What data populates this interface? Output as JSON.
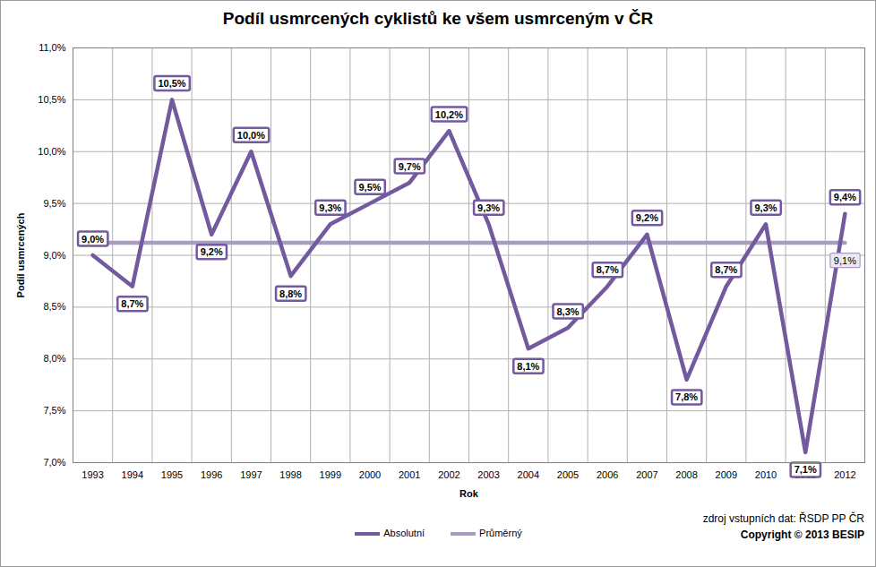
{
  "chart_data": {
    "type": "line",
    "title": "Podíl usmrcených cyklistů ke všem usmrceným v ČR",
    "x_label": "Rok",
    "y_label": "Podíl usmrcených",
    "categories": [
      "1993",
      "1994",
      "1995",
      "1996",
      "1997",
      "1998",
      "1999",
      "2000",
      "2001",
      "2002",
      "2003",
      "2004",
      "2005",
      "2006",
      "2007",
      "2008",
      "2009",
      "2010",
      "2011",
      "2012"
    ],
    "series": [
      {
        "name": "Absolutní",
        "color": "#735a9e",
        "values": [
          9.0,
          8.7,
          10.5,
          9.2,
          10.0,
          8.8,
          9.3,
          9.5,
          9.7,
          10.2,
          9.3,
          8.1,
          8.3,
          8.7,
          9.2,
          7.8,
          8.7,
          9.3,
          7.1,
          9.4
        ],
        "value_labels": [
          "9,0%",
          "8,7%",
          "10,5%",
          "9,2%",
          "10,0%",
          "8,8%",
          "9,3%",
          "9,5%",
          "9,7%",
          "10,2%",
          "9,3%",
          "8,1%",
          "8,3%",
          "8,7%",
          "9,2%",
          "7,8%",
          "8,7%",
          "9,3%",
          "7,1%",
          "9,4%"
        ]
      },
      {
        "name": "Průměrný",
        "color": "#a99bc1",
        "values": [
          9.12,
          9.12,
          9.12,
          9.12,
          9.12,
          9.12,
          9.12,
          9.12,
          9.12,
          9.12,
          9.12,
          9.12,
          9.12,
          9.12,
          9.12,
          9.12,
          9.12,
          9.12,
          9.12,
          9.12
        ],
        "value_labels": [
          null,
          null,
          null,
          null,
          null,
          null,
          null,
          null,
          null,
          null,
          null,
          null,
          null,
          null,
          null,
          null,
          null,
          null,
          null,
          "9,1%"
        ]
      }
    ],
    "ylim": [
      7,
      11
    ],
    "yticks": [
      {
        "value": 7,
        "label": "7,0%"
      },
      {
        "value": 7.5,
        "label": "7,5%"
      },
      {
        "value": 8,
        "label": "8,0%"
      },
      {
        "value": 8.5,
        "label": "8,5%"
      },
      {
        "value": 9,
        "label": "9,0%"
      },
      {
        "value": 9.5,
        "label": "9,5%"
      },
      {
        "value": 10,
        "label": "10,0%"
      },
      {
        "value": 10.5,
        "label": "10,5%"
      },
      {
        "value": 11,
        "label": "11,0%"
      }
    ],
    "grid": true,
    "data_labels": true,
    "legend": "bottom",
    "annotations": [
      "zdroj vstupních dat: ŘSDP PP ČR",
      "Copyright © 2013 BESIP"
    ]
  }
}
